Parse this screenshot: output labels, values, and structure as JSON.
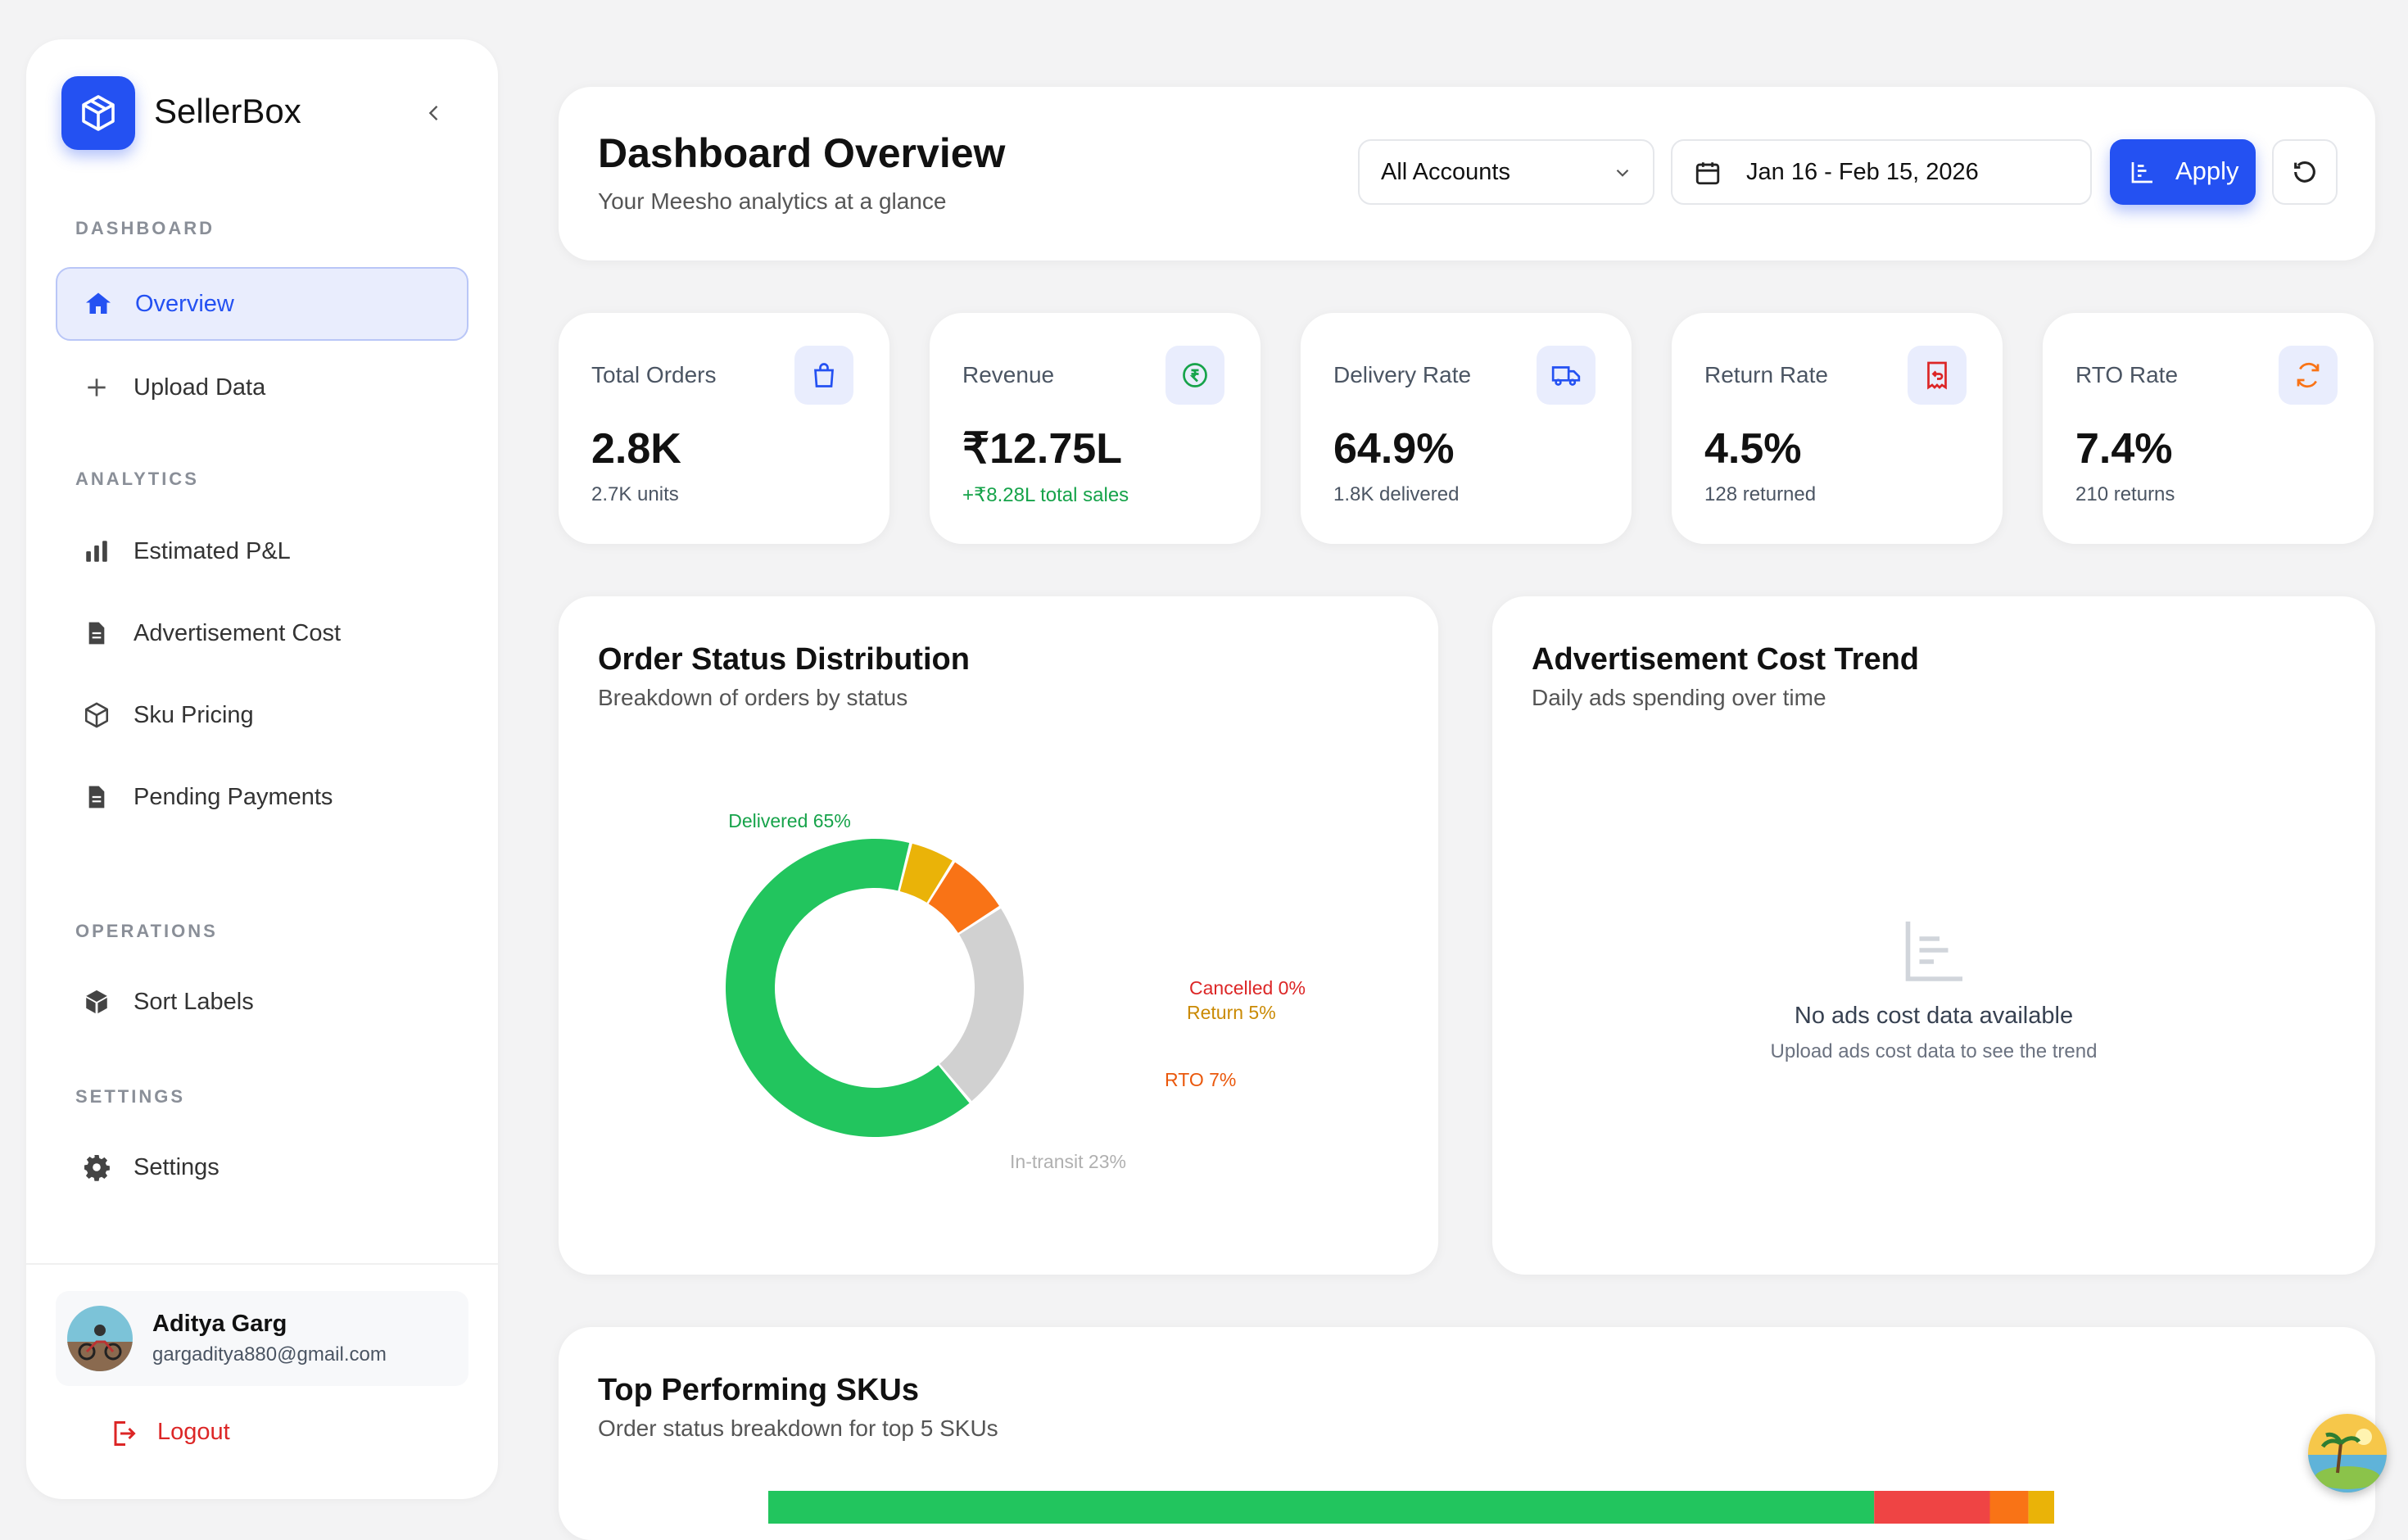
{
  "sidebar": {
    "brand": "SellerBox",
    "sections": {
      "dashboard": "DASHBOARD",
      "analytics": "ANALYTICS",
      "operations": "OPERATIONS",
      "settings": "SETTINGS"
    },
    "items": {
      "overview": "Overview",
      "upload": "Upload Data",
      "pnl": "Estimated P&L",
      "adcost": "Advertisement Cost",
      "sku": "Sku Pricing",
      "pending": "Pending Payments",
      "sort": "Sort Labels",
      "settings": "Settings"
    },
    "user": {
      "name": "Aditya Garg",
      "email": "gargaditya880@gmail.com"
    },
    "logout": "Logout"
  },
  "header": {
    "title": "Dashboard Overview",
    "subtitle": "Your Meesho analytics at a glance",
    "account_select": "All Accounts",
    "date_range": "Jan 16 - Feb 15, 2026",
    "apply": "Apply"
  },
  "metrics": [
    {
      "label": "Total Orders",
      "value": "2.8K",
      "sub": "2.7K units",
      "icon": "shopping-bag-icon",
      "accent": "#2451f2"
    },
    {
      "label": "Revenue",
      "value": "₹12.75L",
      "sub": "+₹8.28L total sales",
      "icon": "rupee-icon",
      "accent": "#16a34a"
    },
    {
      "label": "Delivery Rate",
      "value": "64.9%",
      "sub": "1.8K delivered",
      "icon": "truck-icon",
      "accent": "#2451f2"
    },
    {
      "label": "Return Rate",
      "value": "4.5%",
      "sub": "128 returned",
      "icon": "return-receipt-icon",
      "accent": "#dc2626"
    },
    {
      "label": "RTO Rate",
      "value": "7.4%",
      "sub": "210 returns",
      "icon": "refresh-icon",
      "accent": "#f97316"
    }
  ],
  "order_status": {
    "title": "Order Status Distribution",
    "subtitle": "Breakdown of orders by status"
  },
  "ads": {
    "title": "Advertisement Cost Trend",
    "subtitle": "Daily ads spending over time",
    "empty_title": "No ads cost data available",
    "empty_sub": "Upload ads cost data to see the trend"
  },
  "top_skus": {
    "title": "Top Performing SKUs",
    "subtitle": "Order status breakdown for top 5 SKUs"
  },
  "chart_data": [
    {
      "type": "pie",
      "title": "Order Status Distribution",
      "labels": [
        "Delivered 65%",
        "Cancelled 0%",
        "Return 5%",
        "RTO 7%",
        "In-transit 23%"
      ],
      "categories": [
        "Delivered",
        "Cancelled",
        "Return",
        "RTO",
        "In-transit"
      ],
      "values": [
        65,
        0,
        5,
        7,
        23
      ],
      "colors": [
        "#22c55e",
        "#dc2626",
        "#eab308",
        "#f97316",
        "#d1d1d1"
      ],
      "label_colors": [
        "#16a34a",
        "#dc2626",
        "#ca8a04",
        "#ea580c",
        "#b0b0b0"
      ]
    },
    {
      "type": "bar",
      "title": "Top Performing SKUs",
      "categories": [
        "Delivered",
        "Cancelled",
        "RTO",
        "Return"
      ],
      "values": [
        86,
        9,
        3,
        2
      ],
      "colors": [
        "#22c55e",
        "#ef4444",
        "#f97316",
        "#eab308"
      ]
    }
  ]
}
